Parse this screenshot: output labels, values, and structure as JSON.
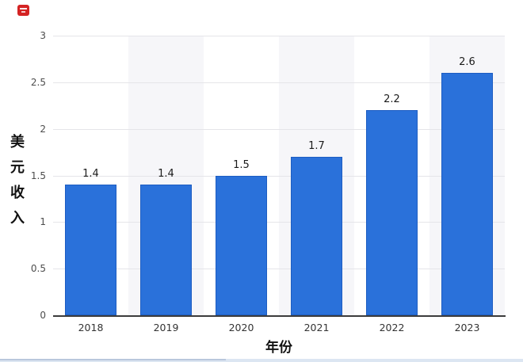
{
  "chart_data": {
    "type": "bar",
    "title": "",
    "categories": [
      "2018",
      "2019",
      "2020",
      "2021",
      "2022",
      "2023"
    ],
    "values": [
      1.4,
      1.4,
      1.5,
      1.7,
      2.2,
      2.6
    ],
    "value_labels": [
      "1.4",
      "1.4",
      "1.5",
      "1.7",
      "2.2",
      "2.6"
    ],
    "xlabel": "年份",
    "ylabel": "美元收入",
    "ylim": [
      0,
      3
    ],
    "yticks": [
      0,
      0.5,
      1,
      1.5,
      2,
      2.5,
      3
    ],
    "ytick_labels": [
      "0",
      "0.5",
      "1",
      "1.5",
      "2",
      "2.5",
      "3"
    ],
    "grid": true,
    "legend": false,
    "highlighted_columns": [
      "2019",
      "2021",
      "2023"
    ],
    "colors": {
      "bar_fill": "#2a71da",
      "bar_border": "#1d5dc2",
      "column_band": "#f6f6f9",
      "gridline": "#e5e5e9",
      "axis_line": "#3c3c3c",
      "value_label_text": "#1a1a1a",
      "tick_text": "#4d4d4d",
      "category_text": "#333333",
      "title_text": "#111111"
    }
  },
  "decorations": {
    "red_stamp_color": "#d42323",
    "bottom_edge_color": "#dce6f2",
    "bottom_edge_dark_color": "#b9c7dc"
  }
}
